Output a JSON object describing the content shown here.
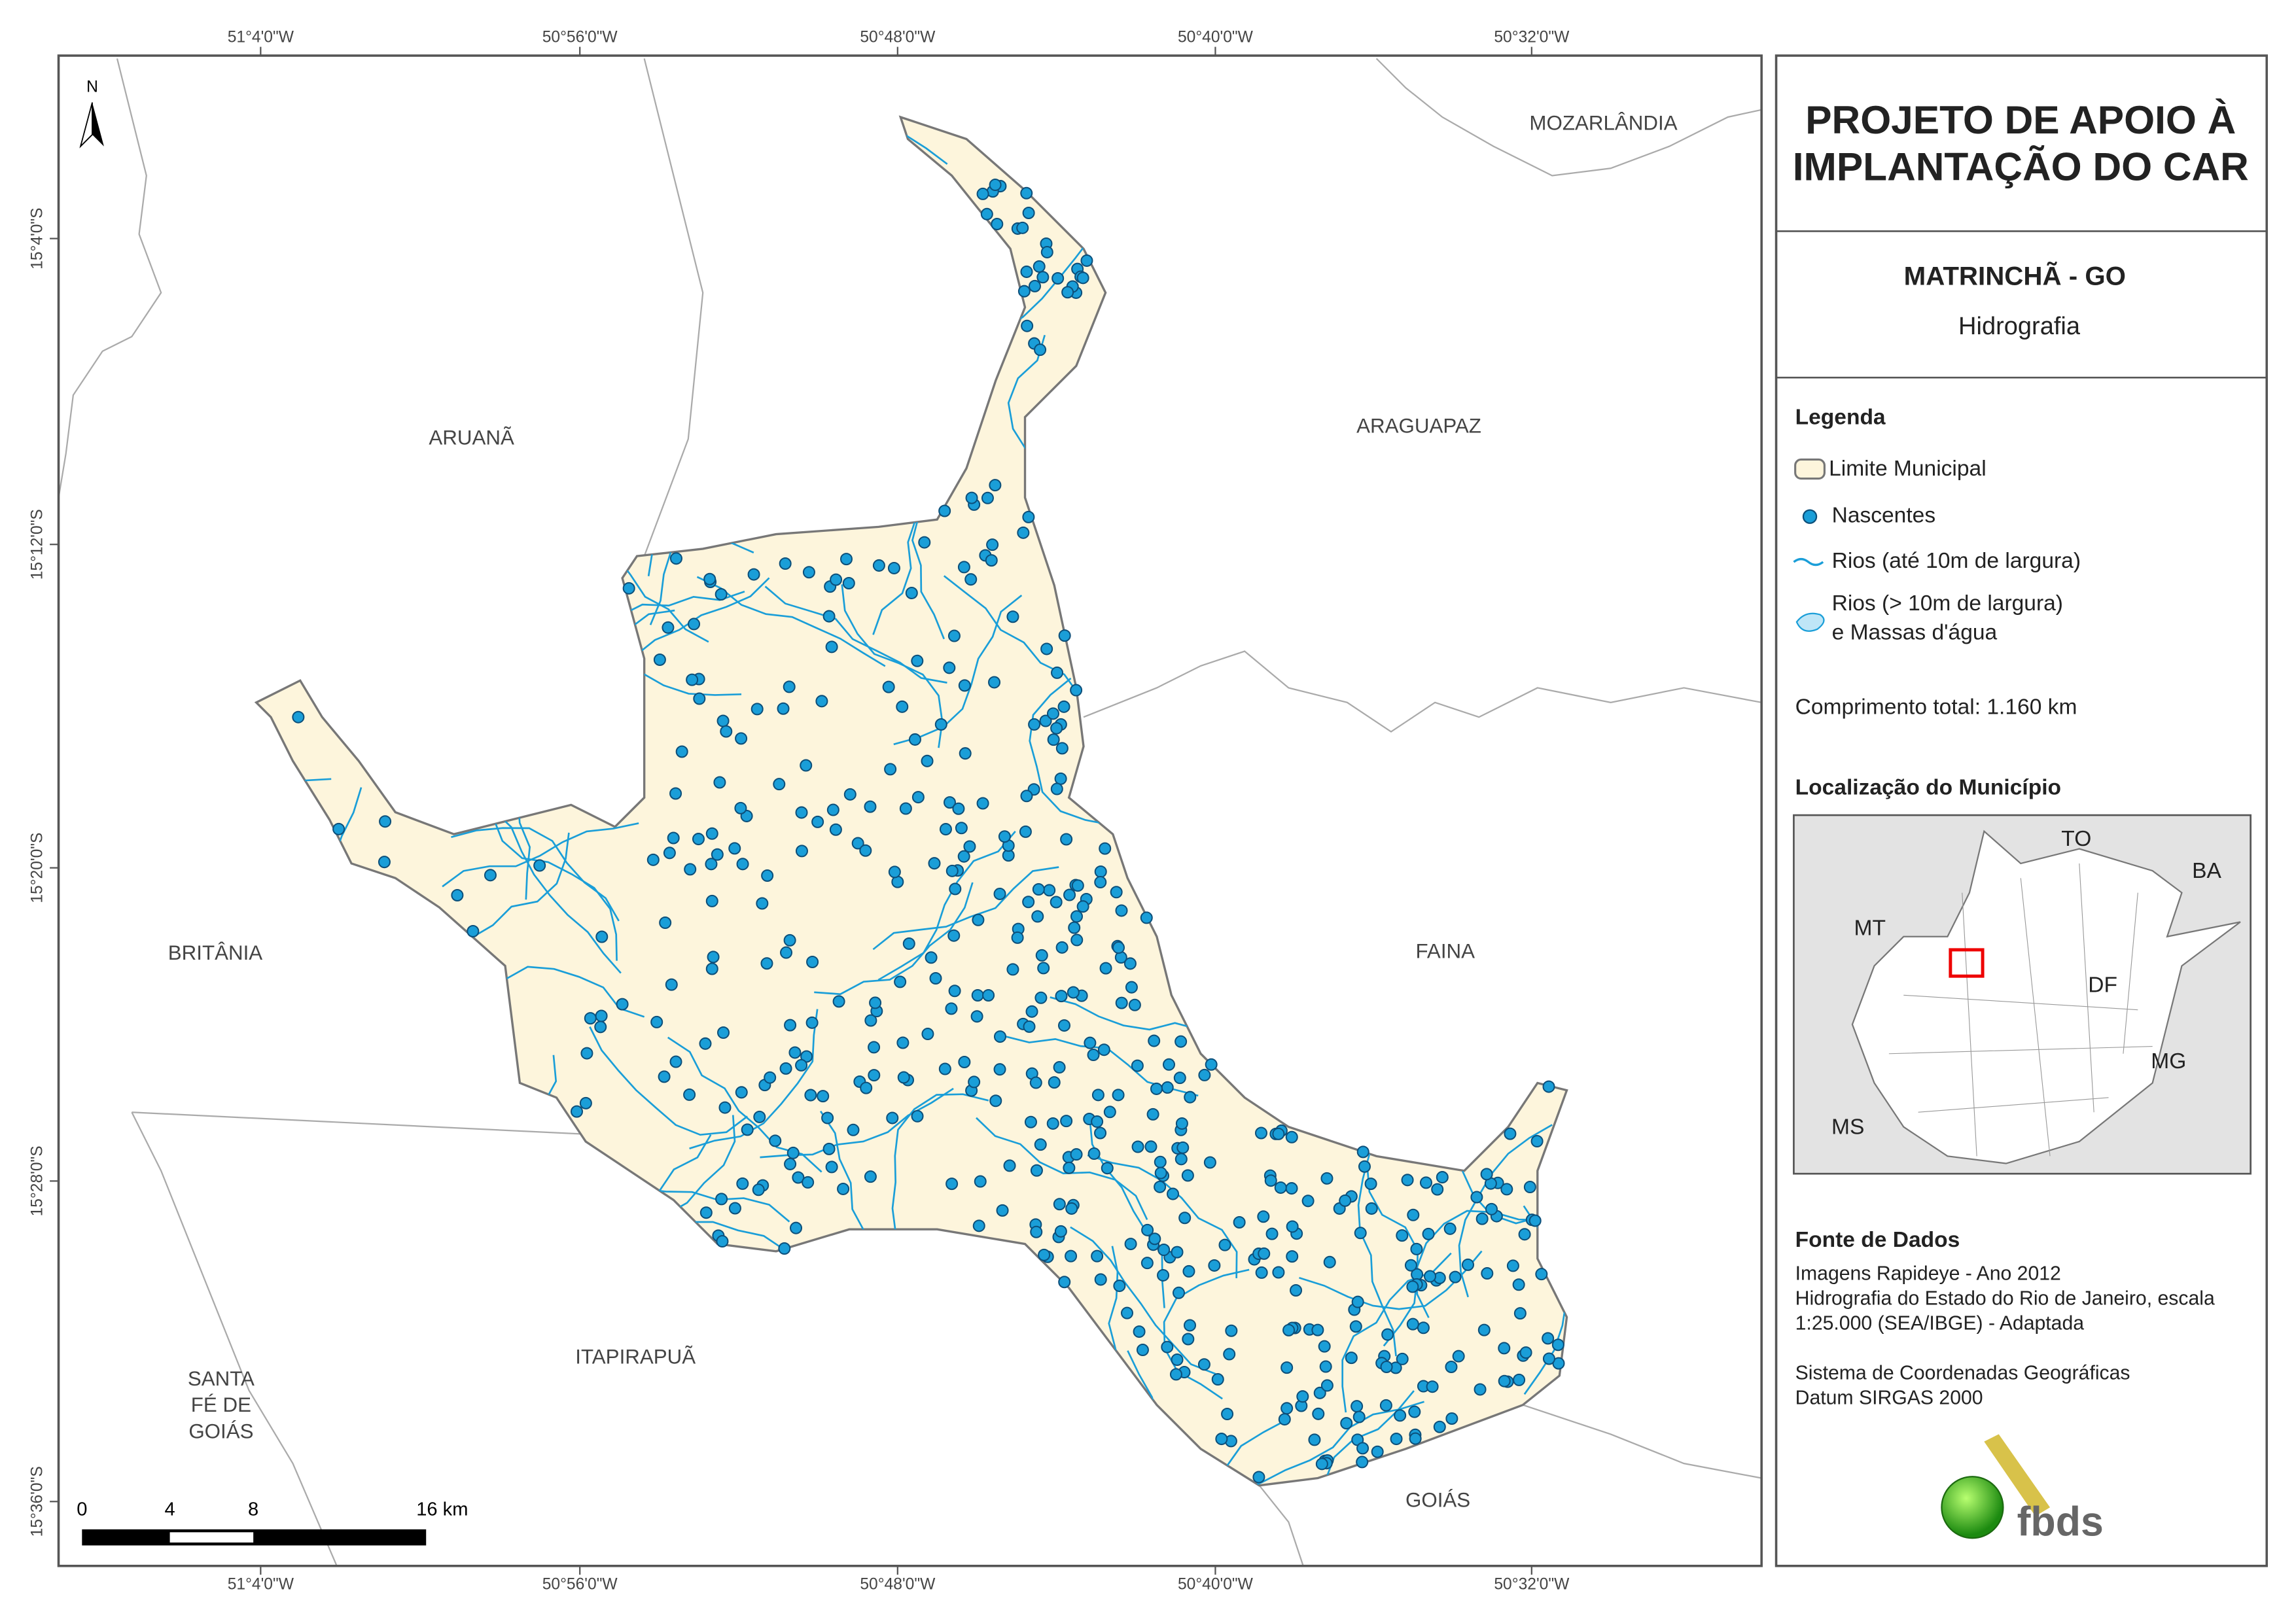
{
  "map": {
    "top_coords": [
      "51°4'0\"W",
      "50°56'0\"W",
      "50°48'0\"W",
      "50°40'0\"W",
      "50°32'0\"W"
    ],
    "bottom_coords": [
      "51°4'0\"W",
      "50°56'0\"W",
      "50°48'0\"W",
      "50°40'0\"W",
      "50°32'0\"W"
    ],
    "left_coords": [
      "15°4'0\"S",
      "15°12'0\"S",
      "15°20'0\"S",
      "15°28'0\"S",
      "15°36'0\"S"
    ],
    "north": "N",
    "places": [
      "MOZARLÂNDIA",
      "ARUANÃ",
      "ARAGUAPAZ",
      "BRITÂNIA",
      "FAINA",
      "ITAPIRAPUÃ",
      "GOIÁS"
    ],
    "santa_fe_lines": [
      "SANTA",
      "FÉ DE",
      "GOIÁS"
    ],
    "scale_labels": [
      "0",
      "4",
      "8",
      "16 km"
    ]
  },
  "panel": {
    "title_lines": [
      "PROJETO DE APOIO À",
      "IMPLANTAÇÃO DO CAR"
    ],
    "municipality": "MATRINCHÃ - GO",
    "theme": "Hidrografia",
    "legend": {
      "heading": "Legenda",
      "items": [
        "Limite Municipal",
        "Nascentes",
        "Rios (até 10m de largura)"
      ],
      "water_lines": [
        "Rios (> 10m de largura)",
        "e Massas d'água"
      ]
    },
    "total_length": "Comprimento total:  1.160 km",
    "location": {
      "heading": "Localização do Município",
      "labels": [
        "TO",
        "BA",
        "MT",
        "DF",
        "MG",
        "MS"
      ]
    },
    "sources": {
      "heading": "Fonte de Dados",
      "lines": [
        "Imagens Rapideye - Ano 2012",
        "Hidrografia do Estado do Rio de Janeiro, escala",
        "1:25.000 (SEA/IBGE) - Adaptada",
        "",
        "Sistema de Coordenadas Geográficas",
        "Datum SIRGAS 2000"
      ]
    },
    "logo": "fbds"
  }
}
